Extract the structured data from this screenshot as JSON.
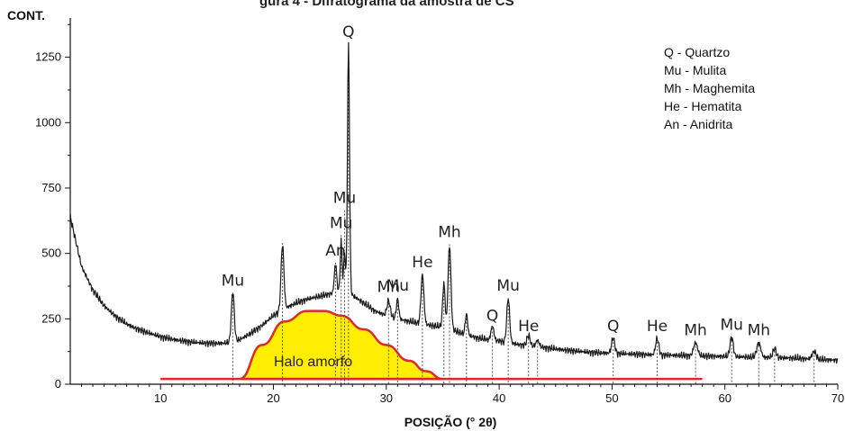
{
  "page": {
    "partial_title": "gura 4 - Difratograma da amostra de CS"
  },
  "chart_data": {
    "type": "line",
    "ylabel": "CONT.",
    "xlabel": "POSIÇÃO (° 2θ)",
    "xlim": [
      2,
      70
    ],
    "ylim": [
      0,
      1400
    ],
    "x_ticks": [
      10,
      20,
      30,
      40,
      50,
      60,
      70
    ],
    "y_ticks": [
      0,
      250,
      500,
      750,
      1000,
      1250
    ],
    "legend_position": "top-right",
    "legend": [
      "Q - Quartzo",
      "Mu - Mulita",
      "Mh - Maghemita",
      "He - Hematita",
      "An - Anidrita"
    ],
    "background": [
      [
        2,
        640
      ],
      [
        3,
        450
      ],
      [
        4,
        360
      ],
      [
        5,
        300
      ],
      [
        6,
        260
      ],
      [
        7,
        230
      ],
      [
        8,
        210
      ],
      [
        9,
        195
      ],
      [
        10,
        182
      ],
      [
        11,
        172
      ],
      [
        12,
        165
      ],
      [
        13,
        160
      ],
      [
        14,
        157
      ],
      [
        15,
        156
      ],
      [
        16,
        158
      ],
      [
        17,
        170
      ],
      [
        18,
        195
      ],
      [
        19,
        225
      ],
      [
        20,
        262
      ],
      [
        21,
        290
      ],
      [
        22,
        310
      ],
      [
        23,
        325
      ],
      [
        24,
        335
      ],
      [
        25,
        345
      ],
      [
        26,
        355
      ],
      [
        27,
        340
      ],
      [
        28,
        310
      ],
      [
        29,
        280
      ],
      [
        30,
        262
      ],
      [
        31,
        250
      ],
      [
        32,
        240
      ],
      [
        33,
        232
      ],
      [
        34,
        225
      ],
      [
        35,
        218
      ],
      [
        36,
        205
      ],
      [
        37,
        190
      ],
      [
        38,
        178
      ],
      [
        39,
        170
      ],
      [
        40,
        165
      ],
      [
        42,
        150
      ],
      [
        44,
        140
      ],
      [
        46,
        130
      ],
      [
        48,
        122
      ],
      [
        50,
        118
      ],
      [
        52,
        115
      ],
      [
        54,
        112
      ],
      [
        56,
        110
      ],
      [
        58,
        108
      ],
      [
        60,
        106
      ],
      [
        62,
        104
      ],
      [
        64,
        102
      ],
      [
        66,
        100
      ],
      [
        68,
        95
      ],
      [
        70,
        92
      ]
    ],
    "peaks": [
      {
        "label": "Mu",
        "x": 16.4,
        "y": 350,
        "height": 190,
        "width": 0.18
      },
      {
        "label": "",
        "x": 20.8,
        "y": 540,
        "height": 250,
        "width": 0.18
      },
      {
        "label": "An",
        "x": 25.5,
        "y": 465,
        "height": 110,
        "width": 0.15
      },
      {
        "label": "Mu",
        "x": 26.0,
        "y": 570,
        "height": 190,
        "width": 0.12
      },
      {
        "label": "Mu",
        "x": 26.3,
        "y": 665,
        "height": 160,
        "width": 0.1
      },
      {
        "label": "Q",
        "x": 26.65,
        "y": 1300,
        "height": 950,
        "width": 0.13
      },
      {
        "label": "Mh",
        "x": 30.2,
        "y": 325,
        "height": 60,
        "width": 0.2
      },
      {
        "label": "Mu",
        "x": 31.0,
        "y": 330,
        "height": 75,
        "width": 0.15
      },
      {
        "label": "He",
        "x": 33.2,
        "y": 420,
        "height": 190,
        "width": 0.18
      },
      {
        "label": "",
        "x": 35.1,
        "y": 395,
        "height": 170,
        "width": 0.15
      },
      {
        "label": "Mh",
        "x": 35.6,
        "y": 535,
        "height": 320,
        "width": 0.18
      },
      {
        "label": "",
        "x": 37.1,
        "y": 265,
        "height": 80,
        "width": 0.15
      },
      {
        "label": "Q",
        "x": 39.4,
        "y": 215,
        "height": 55,
        "width": 0.18
      },
      {
        "label": "Mu",
        "x": 40.8,
        "y": 330,
        "height": 170,
        "width": 0.18
      },
      {
        "label": "He",
        "x": 42.6,
        "y": 175,
        "height": 40,
        "width": 0.2
      },
      {
        "label": "",
        "x": 43.4,
        "y": 160,
        "height": 25,
        "width": 0.2
      },
      {
        "label": "Q",
        "x": 50.1,
        "y": 175,
        "height": 60,
        "width": 0.2
      },
      {
        "label": "He",
        "x": 54.0,
        "y": 175,
        "height": 63,
        "width": 0.2
      },
      {
        "label": "Mh",
        "x": 57.4,
        "y": 160,
        "height": 50,
        "width": 0.25
      },
      {
        "label": "Mu",
        "x": 60.6,
        "y": 180,
        "height": 75,
        "width": 0.2
      },
      {
        "label": "Mh",
        "x": 63.0,
        "y": 160,
        "height": 55,
        "width": 0.25
      },
      {
        "label": "",
        "x": 64.4,
        "y": 140,
        "height": 35,
        "width": 0.2
      },
      {
        "label": "",
        "x": 67.9,
        "y": 125,
        "height": 30,
        "width": 0.25
      }
    ],
    "halo": {
      "label": "Halo amorfo",
      "points": [
        [
          17,
          20
        ],
        [
          19,
          150
        ],
        [
          21,
          240
        ],
        [
          23,
          280
        ],
        [
          24.5,
          280
        ],
        [
          26,
          262
        ],
        [
          28,
          210
        ],
        [
          30,
          150
        ],
        [
          32,
          90
        ],
        [
          33.5,
          50
        ],
        [
          35,
          20
        ]
      ],
      "baseline": {
        "x": [
          10,
          58
        ],
        "y": 20
      }
    }
  }
}
